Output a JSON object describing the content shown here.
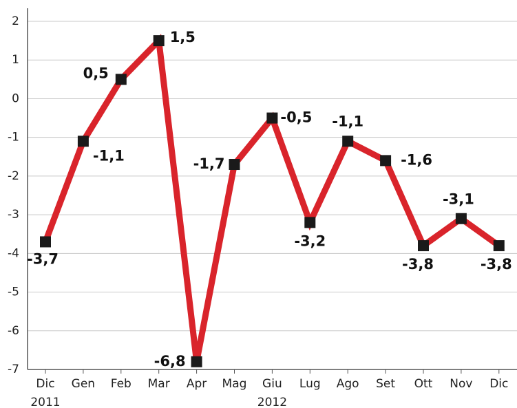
{
  "chart_data": {
    "type": "line",
    "categories": [
      "Dic\n2011",
      "Gen",
      "Feb",
      "Mar",
      "Apr",
      "Mag",
      "Giu\n2012",
      "Lug",
      "Ago",
      "Set",
      "Ott",
      "Nov",
      "Dic"
    ],
    "values": [
      -3.7,
      -1.1,
      0.5,
      1.5,
      -6.8,
      -1.7,
      -0.5,
      -3.2,
      -1.1,
      -1.6,
      -3.8,
      -3.1,
      -3.8
    ],
    "value_labels": [
      "-3,7",
      "-1,1",
      "0,5",
      "1,5",
      "-6,8",
      "-1,7",
      "-0,5",
      "-3,2",
      "-1,1",
      "-1,6",
      "-3,8",
      "-3,1",
      "-3,8"
    ],
    "color": "#d9242b",
    "ylim": [
      -7,
      2
    ],
    "yticks": [
      -7,
      -6,
      -5,
      -4,
      -3,
      -2,
      -1,
      0,
      1,
      2
    ],
    "grid": true
  }
}
